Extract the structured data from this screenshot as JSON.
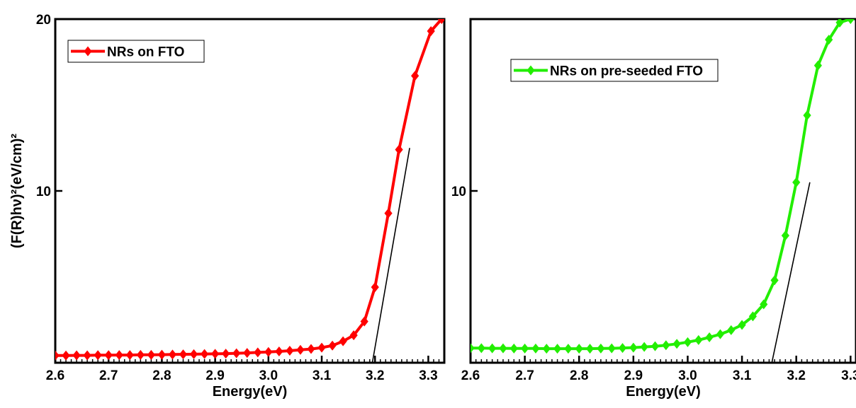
{
  "chart_data": [
    {
      "type": "line",
      "xlabel": "Energy(eV)",
      "ylabel": "(F(R)hν)²(eV/cm)²",
      "xlim": [
        2.6,
        3.33
      ],
      "ylim": [
        0,
        20
      ],
      "xticks": [
        "2.6",
        "2.7",
        "2.8",
        "2.9",
        "3.0",
        "3.1",
        "3.2",
        "3.3"
      ],
      "yticks": [
        {
          "value": 10,
          "label": "10"
        },
        {
          "value": 20,
          "label": "20"
        }
      ],
      "grid": false,
      "legend_position": "top-left",
      "colors": {
        "series": "#ff0000",
        "fit": "#000000"
      },
      "series": [
        {
          "name": "NRs on FTO",
          "x": [
            2.6,
            2.62,
            2.64,
            2.66,
            2.68,
            2.7,
            2.72,
            2.74,
            2.76,
            2.78,
            2.8,
            2.82,
            2.84,
            2.86,
            2.88,
            2.9,
            2.92,
            2.94,
            2.96,
            2.98,
            3.0,
            3.02,
            3.04,
            3.06,
            3.08,
            3.1,
            3.12,
            3.14,
            3.16,
            3.18,
            3.2,
            3.225,
            3.245,
            3.275,
            3.305,
            3.325
          ],
          "y": [
            0.42,
            0.42,
            0.43,
            0.43,
            0.44,
            0.44,
            0.45,
            0.45,
            0.46,
            0.46,
            0.47,
            0.48,
            0.49,
            0.5,
            0.51,
            0.52,
            0.53,
            0.55,
            0.57,
            0.6,
            0.63,
            0.66,
            0.7,
            0.75,
            0.8,
            0.88,
            1.0,
            1.25,
            1.6,
            2.4,
            4.4,
            8.7,
            12.4,
            16.7,
            19.3,
            20.0
          ]
        }
      ],
      "fit_line": {
        "x": [
          3.195,
          3.265
        ],
        "y": [
          0.0,
          12.5
        ]
      }
    },
    {
      "type": "line",
      "xlabel": "Energy(eV)",
      "ylabel": "",
      "xlim": [
        2.6,
        3.31
      ],
      "ylim": [
        0,
        20
      ],
      "xticks": [
        "2.6",
        "2.7",
        "2.8",
        "2.9",
        "3.0",
        "3.1",
        "3.2",
        "3.3"
      ],
      "yticks": [
        {
          "value": 10,
          "label": "10"
        }
      ],
      "grid": false,
      "legend_position": "top-left",
      "colors": {
        "series": "#22ee00",
        "fit": "#000000"
      },
      "series": [
        {
          "name": "NRs on pre-seeded FTO",
          "x": [
            2.6,
            2.62,
            2.64,
            2.66,
            2.68,
            2.7,
            2.72,
            2.74,
            2.76,
            2.78,
            2.8,
            2.82,
            2.84,
            2.86,
            2.88,
            2.9,
            2.92,
            2.94,
            2.96,
            2.98,
            3.0,
            3.02,
            3.04,
            3.06,
            3.08,
            3.1,
            3.12,
            3.14,
            3.16,
            3.18,
            3.2,
            3.22,
            3.24,
            3.26,
            3.28,
            3.3
          ],
          "y": [
            0.85,
            0.85,
            0.84,
            0.84,
            0.83,
            0.83,
            0.83,
            0.82,
            0.82,
            0.82,
            0.82,
            0.82,
            0.83,
            0.84,
            0.86,
            0.88,
            0.92,
            0.96,
            1.02,
            1.1,
            1.2,
            1.32,
            1.48,
            1.66,
            1.9,
            2.2,
            2.7,
            3.4,
            4.8,
            7.4,
            10.5,
            14.4,
            17.3,
            18.8,
            19.8,
            20.0
          ]
        }
      ],
      "fit_line": {
        "x": [
          3.155,
          3.225
        ],
        "y": [
          0.0,
          10.5
        ]
      }
    }
  ]
}
